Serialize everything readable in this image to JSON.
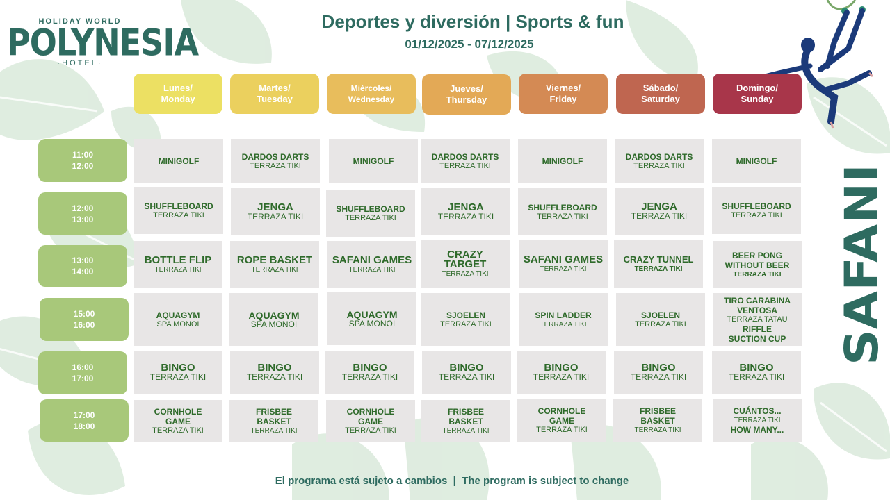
{
  "header": {
    "title": "Deportes y diversión | Sports & fun",
    "dates": "01/12/2025 - 07/12/2025"
  },
  "logo": {
    "top": "HOLIDAY WORLD",
    "main": "POLYNESIA",
    "sub": "·HOTEL·"
  },
  "brand": {
    "side_text": "SAFANI"
  },
  "colors": {
    "accent": "#2e6b60",
    "time_slot": "#a8c87a",
    "cell": "#e8e6e6",
    "day_colors": [
      "#ece063",
      "#ebd05e",
      "#e8bd5c",
      "#e3a956",
      "#d48a54",
      "#bf6650",
      "#a8364a"
    ]
  },
  "days": [
    {
      "line1": "Lunes/",
      "line2": "Monday"
    },
    {
      "line1": "Martes/",
      "line2": "Tuesday"
    },
    {
      "line1": "Miércoles/",
      "line2": "Wednesday"
    },
    {
      "line1": "Jueves/",
      "line2": "Thursday"
    },
    {
      "line1": "Viernes/",
      "line2": "Friday"
    },
    {
      "line1": "Sábado/",
      "line2": "Saturday"
    },
    {
      "line1": "Domingo/",
      "line2": "Sunday"
    }
  ],
  "times": [
    {
      "start": "11:00",
      "end": "12:00"
    },
    {
      "start": "12:00",
      "end": "13:00"
    },
    {
      "start": "13:00",
      "end": "14:00"
    },
    {
      "start": "15:00",
      "end": "16:00"
    },
    {
      "start": "16:00",
      "end": "17:00"
    },
    {
      "start": "17:00",
      "end": "18:00"
    }
  ],
  "schedule": [
    [
      {
        "a": "MINIGOLF",
        "b": ""
      },
      {
        "a": "DARDOS  DARTS",
        "b": "TERRAZA TIKI"
      },
      {
        "a": "MINIGOLF",
        "b": ""
      },
      {
        "a": "DARDOS  DARTS",
        "b": "TERRAZA TIKI"
      },
      {
        "a": "MINIGOLF",
        "b": ""
      },
      {
        "a": "DARDOS  DARTS",
        "b": "TERRAZA TIKI"
      },
      {
        "a": "MINIGOLF",
        "b": ""
      }
    ],
    [
      {
        "a": "SHUFFLEBOARD",
        "b": "TERRAZA TIKI"
      },
      {
        "a": "JENGA",
        "b": "TERRAZA TIKI"
      },
      {
        "a": "SHUFFLEBOARD",
        "b": "TERRAZA TIKI"
      },
      {
        "a": "JENGA",
        "b": "TERRAZA TIKI"
      },
      {
        "a": "SHUFFLEBOARD",
        "b": "TERRAZA TIKI"
      },
      {
        "a": "JENGA",
        "b": "TERRAZA TIKI"
      },
      {
        "a": "SHUFFLEBOARD",
        "b": "TERRAZA TIKI"
      }
    ],
    [
      {
        "a": "BOTTLE  FLIP",
        "b": "TERRAZA TIKI"
      },
      {
        "a": "ROPE BASKET",
        "b": "TERRAZA TIKI"
      },
      {
        "a": "SAFANI GAMES",
        "b": "TERRAZA TIKI"
      },
      {
        "a": "CRAZY TARGET",
        "b": "TERRAZA TIKI"
      },
      {
        "a": "SAFANI GAMES",
        "b": "TERRAZA TIKI"
      },
      {
        "a": "CRAZY  TUNNEL",
        "b": "TERRAZA  TIKI"
      },
      {
        "a": "BEER  PONG WITHOUT BEER",
        "b": "TERRAZA  TIKI"
      }
    ],
    [
      {
        "a": "AQUAGYM",
        "b": "SPA MONOI"
      },
      {
        "a": "AQUAGYM",
        "b": "SPA MONOI"
      },
      {
        "a": "AQUAGYM",
        "b": "SPA MONOI"
      },
      {
        "a": "SJOELEN",
        "b": "TERRAZA TIKI"
      },
      {
        "a": "SPIN LADDER",
        "b": "TERRAZA TIKI"
      },
      {
        "a": "SJOELEN",
        "b": "TERRAZA TIKI"
      },
      {
        "a": "TIRO CARABINA VENTOSA",
        "b": "TERRAZA TATAU",
        "c": "RIFFLE SUCTION CUP"
      }
    ],
    [
      {
        "a": "BINGO",
        "b": "TERRAZA TIKI"
      },
      {
        "a": "BINGO",
        "b": "TERRAZA TIKI"
      },
      {
        "a": "BINGO",
        "b": "TERRAZA TIKI"
      },
      {
        "a": "BINGO",
        "b": "TERRAZA TIKI"
      },
      {
        "a": "BINGO",
        "b": "TERRAZA TIKI"
      },
      {
        "a": "BINGO",
        "b": "TERRAZA TIKI"
      },
      {
        "a": "BINGO",
        "b": "TERRAZA TIKI"
      }
    ],
    [
      {
        "a": "CORNHOLE GAME",
        "b": "TERRAZA TIKI"
      },
      {
        "a": "FRISBEE BASKET",
        "b": "TERRAZA TIKI"
      },
      {
        "a": "CORNHOLE GAME",
        "b": "TERRAZA TIKI"
      },
      {
        "a": "FRISBEE BASKET",
        "b": "TERRAZA TIKI"
      },
      {
        "a": "CORNHOLE GAME",
        "b": "TERRAZA TIKI"
      },
      {
        "a": "FRISBEE BASKET",
        "b": "TERRAZA TIKI"
      },
      {
        "a": "CUÁNTOS...",
        "b": "TERRAZA TIKI",
        "c": "HOW MANY..."
      }
    ]
  ],
  "footer": "El programa está sujeto a cambios  |  The program is subject to change"
}
